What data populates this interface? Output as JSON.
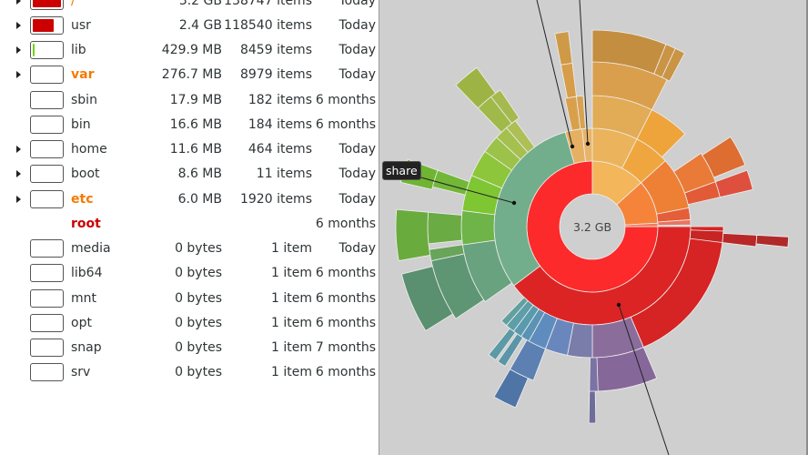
{
  "folders": [
    {
      "name": "/",
      "size": "3.2 GB",
      "items": "138747 items",
      "modified": "Today",
      "expandable": true,
      "expanded": true,
      "name_color": "#f57900",
      "fill": 1.0,
      "fill_color": "#cc0000"
    },
    {
      "name": "usr",
      "size": "2.4 GB",
      "items": "118540 items",
      "modified": "Today",
      "expandable": true,
      "name_color": "#2e3436",
      "fill": 0.75,
      "fill_color": "#cc0000"
    },
    {
      "name": "lib",
      "size": "429.9 MB",
      "items": "8459 items",
      "modified": "Today",
      "expandable": true,
      "name_color": "#2e3436",
      "fill": 0.04,
      "fill_color": "#73d216"
    },
    {
      "name": "var",
      "size": "276.7 MB",
      "items": "8979 items",
      "modified": "Today",
      "expandable": true,
      "name_color": "#f57900",
      "bold": true,
      "fill": 0,
      "fill_color": ""
    },
    {
      "name": "sbin",
      "size": "17.9 MB",
      "items": "182 items",
      "modified": "6 months",
      "expandable": false,
      "name_color": "#2e3436",
      "fill": 0,
      "fill_color": ""
    },
    {
      "name": "bin",
      "size": "16.6 MB",
      "items": "184 items",
      "modified": "6 months",
      "expandable": false,
      "name_color": "#2e3436",
      "fill": 0,
      "fill_color": ""
    },
    {
      "name": "home",
      "size": "11.6 MB",
      "items": "464 items",
      "modified": "Today",
      "expandable": true,
      "name_color": "#2e3436",
      "fill": 0,
      "fill_color": ""
    },
    {
      "name": "boot",
      "size": "8.6 MB",
      "items": "11 items",
      "modified": "Today",
      "expandable": true,
      "name_color": "#2e3436",
      "fill": 0,
      "fill_color": ""
    },
    {
      "name": "etc",
      "size": "6.0 MB",
      "items": "1920 items",
      "modified": "Today",
      "expandable": true,
      "name_color": "#f57900",
      "bold": true,
      "fill": 0,
      "fill_color": ""
    },
    {
      "name": "root",
      "size": "",
      "items": "",
      "modified": "6 months",
      "expandable": false,
      "no_bar": true,
      "name_color": "#cc0000",
      "bold": true
    },
    {
      "name": "media",
      "size": "0 bytes",
      "items": "1 item",
      "modified": "Today",
      "expandable": false,
      "name_color": "#2e3436",
      "fill": 0
    },
    {
      "name": "lib64",
      "size": "0 bytes",
      "items": "1 item",
      "modified": "6 months",
      "expandable": false,
      "name_color": "#2e3436",
      "fill": 0
    },
    {
      "name": "mnt",
      "size": "0 bytes",
      "items": "1 item",
      "modified": "6 months",
      "expandable": false,
      "name_color": "#2e3436",
      "fill": 0
    },
    {
      "name": "opt",
      "size": "0 bytes",
      "items": "1 item",
      "modified": "6 months",
      "expandable": false,
      "name_color": "#2e3436",
      "fill": 0
    },
    {
      "name": "snap",
      "size": "0 bytes",
      "items": "1 item",
      "modified": "7 months",
      "expandable": false,
      "name_color": "#2e3436",
      "fill": 0
    },
    {
      "name": "srv",
      "size": "0 bytes",
      "items": "1 item",
      "modified": "6 months",
      "expandable": false,
      "name_color": "#2e3436",
      "fill": 0
    }
  ],
  "sunburst": {
    "center_label": "3.2 GB",
    "tooltip": "share",
    "segments": [
      {
        "ring": 1,
        "from": 90,
        "to": 360,
        "color": "#fc2a2a"
      },
      {
        "ring": 1,
        "from": 0,
        "to": 48,
        "color": "#f3b65a"
      },
      {
        "ring": 1,
        "from": 48,
        "to": 87,
        "color": "#f5843a"
      },
      {
        "ring": 1,
        "from": 87,
        "to": 90,
        "color": "#ef7c5c"
      },
      {
        "ring": 2,
        "from": 90,
        "to": 233,
        "color": "#dc2424"
      },
      {
        "ring": 2,
        "from": 233,
        "to": 344,
        "color": "#72ae8c"
      },
      {
        "ring": 2,
        "from": 344,
        "to": 354,
        "color": "#e6b062"
      },
      {
        "ring": 2,
        "from": 354,
        "to": 360,
        "color": "#e8b468"
      },
      {
        "ring": 2,
        "from": 0,
        "to": 27,
        "color": "#ebb45c"
      },
      {
        "ring": 2,
        "from": 27,
        "to": 48,
        "color": "#f0a63e"
      },
      {
        "ring": 2,
        "from": 48,
        "to": 79,
        "color": "#ee8035"
      },
      {
        "ring": 2,
        "from": 79,
        "to": 86,
        "color": "#e55e38"
      },
      {
        "ring": 2,
        "from": 86,
        "to": 89,
        "color": "#ea7460"
      },
      {
        "ring": 3,
        "from": 90,
        "to": 157,
        "color": "#d62323"
      },
      {
        "ring": 3,
        "from": 157,
        "to": 180,
        "color": "#8b6d9c"
      },
      {
        "ring": 3,
        "from": 180,
        "to": 191,
        "color": "#7a7ca9"
      },
      {
        "ring": 3,
        "from": 191,
        "to": 201,
        "color": "#6a87bd"
      },
      {
        "ring": 3,
        "from": 201,
        "to": 209,
        "color": "#5f8cbf"
      },
      {
        "ring": 3,
        "from": 209,
        "to": 213,
        "color": "#5a93b3"
      },
      {
        "ring": 3,
        "from": 213,
        "to": 217,
        "color": "#5a9aad"
      },
      {
        "ring": 3,
        "from": 217,
        "to": 221,
        "color": "#5d9ea8"
      },
      {
        "ring": 3,
        "from": 221,
        "to": 224,
        "color": "#62a0a0"
      },
      {
        "ring": 3,
        "from": 235,
        "to": 262,
        "color": "#69a27e"
      },
      {
        "ring": 3,
        "from": 262,
        "to": 277,
        "color": "#6eb449"
      },
      {
        "ring": 3,
        "from": 277,
        "to": 293,
        "color": "#7ec632"
      },
      {
        "ring": 3,
        "from": 293,
        "to": 305,
        "color": "#8dc63a"
      },
      {
        "ring": 3,
        "from": 305,
        "to": 313,
        "color": "#9cc24a"
      },
      {
        "ring": 3,
        "from": 313,
        "to": 319,
        "color": "#a6c04f"
      },
      {
        "ring": 3,
        "from": 319,
        "to": 324,
        "color": "#adbf55"
      },
      {
        "ring": 3,
        "from": 348,
        "to": 353,
        "color": "#d9a04c"
      },
      {
        "ring": 3,
        "from": 353,
        "to": 356,
        "color": "#d8a252"
      },
      {
        "ring": 3,
        "from": 0,
        "to": 27,
        "color": "#e2ab55"
      },
      {
        "ring": 3,
        "from": 27,
        "to": 45,
        "color": "#eea43a"
      },
      {
        "ring": 3,
        "from": 56,
        "to": 70,
        "color": "#e97a37"
      },
      {
        "ring": 3,
        "from": 70,
        "to": 77,
        "color": "#e35a37"
      },
      {
        "ring": 3,
        "from": 92,
        "to": 97,
        "color": "#c72424"
      },
      {
        "ring": 4,
        "from": 157,
        "to": 180,
        "color": "#86679a"
      },
      {
        "ring": 4,
        "from": 178,
        "to": 181,
        "color": "#7a73a4"
      },
      {
        "ring": 4,
        "from": 201,
        "to": 210,
        "color": "#5b80b1"
      },
      {
        "ring": 4,
        "from": 212,
        "to": 215,
        "color": "#5a95a8"
      },
      {
        "ring": 4,
        "from": 216,
        "to": 219,
        "color": "#5c9aa5"
      },
      {
        "ring": 4,
        "from": 236,
        "to": 258,
        "color": "#5e9674"
      },
      {
        "ring": 4,
        "from": 258,
        "to": 262,
        "color": "#68a45a"
      },
      {
        "ring": 4,
        "from": 264,
        "to": 275,
        "color": "#6aab44"
      },
      {
        "ring": 4,
        "from": 284,
        "to": 290,
        "color": "#73b738"
      },
      {
        "ring": 4,
        "from": 316,
        "to": 322,
        "color": "#a0ba4a"
      },
      {
        "ring": 4,
        "from": 322,
        "to": 326,
        "color": "#a6b94f"
      },
      {
        "ring": 4,
        "from": 349,
        "to": 353,
        "color": "#d79d48"
      },
      {
        "ring": 4,
        "from": 0,
        "to": 27,
        "color": "#da9f4c"
      },
      {
        "ring": 4,
        "from": 57,
        "to": 68,
        "color": "#dd6d30"
      },
      {
        "ring": 4,
        "from": 70,
        "to": 77,
        "color": "#df4f3e"
      },
      {
        "ring": 4,
        "from": 93,
        "to": 97,
        "color": "#b82828"
      },
      {
        "ring": 5,
        "from": 0,
        "to": 22,
        "color": "#c48e40"
      },
      {
        "ring": 5,
        "from": 22,
        "to": 25,
        "color": "#c99444"
      },
      {
        "ring": 5,
        "from": 25,
        "to": 28,
        "color": "#c99444"
      },
      {
        "ring": 5,
        "from": 203,
        "to": 210,
        "color": "#4f74a6"
      },
      {
        "ring": 5,
        "from": 238,
        "to": 256,
        "color": "#5a8f6f"
      },
      {
        "ring": 5,
        "from": 260,
        "to": 275,
        "color": "#6aab3e"
      },
      {
        "ring": 5,
        "from": 283,
        "to": 290,
        "color": "#6fb432"
      },
      {
        "ring": 5,
        "from": 316,
        "to": 324,
        "color": "#9db445"
      },
      {
        "ring": 5,
        "from": 349,
        "to": 353,
        "color": "#cf9a48"
      },
      {
        "ring": 5,
        "from": 179,
        "to": 181,
        "color": "#6e6c99"
      },
      {
        "ring": 5,
        "from": 93,
        "to": 96,
        "color": "#b02a2a"
      }
    ]
  }
}
